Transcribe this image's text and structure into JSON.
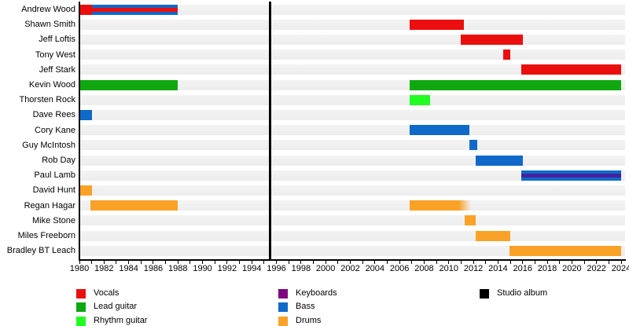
{
  "chart_data": {
    "type": "timeline",
    "description": "Band members timeline (Gantt-style) with instrument roles by year and a studio-album release marker",
    "axis": {
      "start": 1980,
      "end": 2024,
      "tick_step": 2,
      "tick_labels": [
        "1980",
        "1982",
        "1984",
        "1986",
        "1988",
        "1990",
        "1992",
        "1994",
        "1996",
        "1998",
        "2000",
        "2002",
        "2004",
        "2006",
        "2008",
        "2010",
        "2012",
        "2014",
        "2016",
        "2018",
        "2020",
        "2022",
        "2024"
      ]
    },
    "colors": {
      "vocals": "#EB0E0E",
      "lead_guitar": "#0FA80F",
      "rhythm_guitar": "#22FC22",
      "keyboards": "#800080",
      "keyboards_stripe": "#45209D",
      "bass": "#0F69C8",
      "drums": "#F9A227",
      "studio_album": "#000000",
      "row_track": "#F0F0F0",
      "background": "#FFFFFF"
    },
    "members": [
      {
        "name": "Andrew Wood",
        "segments": [
          {
            "start": 1980,
            "end": 1981,
            "role": "vocals"
          },
          {
            "start": 1981,
            "end": 1988,
            "role": "bass",
            "stripe": "vocals"
          }
        ]
      },
      {
        "name": "Shawn Smith",
        "segments": [
          {
            "start": 2006.8,
            "end": 2011.2,
            "role": "vocals"
          }
        ]
      },
      {
        "name": "Jeff Loftis",
        "segments": [
          {
            "start": 2011,
            "end": 2016,
            "role": "vocals"
          }
        ]
      },
      {
        "name": "Tony West",
        "segments": [
          {
            "start": 2014.4,
            "end": 2015,
            "role": "vocals"
          }
        ]
      },
      {
        "name": "Jeff Stark",
        "segments": [
          {
            "start": 2015.9,
            "end": 2024,
            "role": "vocals"
          }
        ]
      },
      {
        "name": "Kevin Wood",
        "segments": [
          {
            "start": 1980,
            "end": 1988,
            "role": "lead_guitar"
          },
          {
            "start": 2006.8,
            "end": 2024,
            "role": "lead_guitar"
          }
        ]
      },
      {
        "name": "Thorsten Rock",
        "segments": [
          {
            "start": 2006.8,
            "end": 2008.5,
            "role": "rhythm_guitar"
          }
        ]
      },
      {
        "name": "Dave Rees",
        "segments": [
          {
            "start": 1980,
            "end": 1981,
            "role": "bass"
          }
        ]
      },
      {
        "name": "Cory Kane",
        "segments": [
          {
            "start": 2006.8,
            "end": 2011.7,
            "role": "bass"
          }
        ]
      },
      {
        "name": "Guy McIntosh",
        "segments": [
          {
            "start": 2011.7,
            "end": 2012.3,
            "role": "bass"
          }
        ]
      },
      {
        "name": "Rob Day",
        "segments": [
          {
            "start": 2012.2,
            "end": 2016,
            "role": "bass"
          }
        ]
      },
      {
        "name": "Paul Lamb",
        "segments": [
          {
            "start": 2015.9,
            "end": 2024,
            "role": "bass",
            "stripe": "keyboards"
          }
        ]
      },
      {
        "name": "David Hunt",
        "segments": [
          {
            "start": 1980,
            "end": 1981,
            "role": "drums"
          }
        ]
      },
      {
        "name": "Regan Hagar",
        "segments": [
          {
            "start": 1980.9,
            "end": 1988,
            "role": "drums"
          },
          {
            "start": 2006.8,
            "end": 2011.8,
            "role": "drums",
            "fade_right": true
          }
        ]
      },
      {
        "name": "Mike Stone",
        "segments": [
          {
            "start": 2011.3,
            "end": 2012.2,
            "role": "drums"
          }
        ]
      },
      {
        "name": "Miles Freeborn",
        "segments": [
          {
            "start": 2012.2,
            "end": 2015,
            "role": "drums"
          }
        ]
      },
      {
        "name": "Bradley BT Leach",
        "segments": [
          {
            "start": 2014.9,
            "end": 2024,
            "role": "drums"
          }
        ]
      }
    ],
    "album_markers": [
      {
        "year": 1995.5
      }
    ],
    "legend": [
      {
        "label": "Vocals",
        "role": "vocals",
        "column": 0,
        "row": 0
      },
      {
        "label": "Lead guitar",
        "role": "lead_guitar",
        "column": 0,
        "row": 1
      },
      {
        "label": "Rhythm guitar",
        "role": "rhythm_guitar",
        "column": 0,
        "row": 2
      },
      {
        "label": "Keyboards",
        "role": "keyboards",
        "column": 1,
        "row": 0
      },
      {
        "label": "Bass",
        "role": "bass",
        "column": 1,
        "row": 1
      },
      {
        "label": "Drums",
        "role": "drums",
        "column": 1,
        "row": 2
      },
      {
        "label": "Studio album",
        "role": "studio_album",
        "column": 2,
        "row": 0
      }
    ]
  }
}
